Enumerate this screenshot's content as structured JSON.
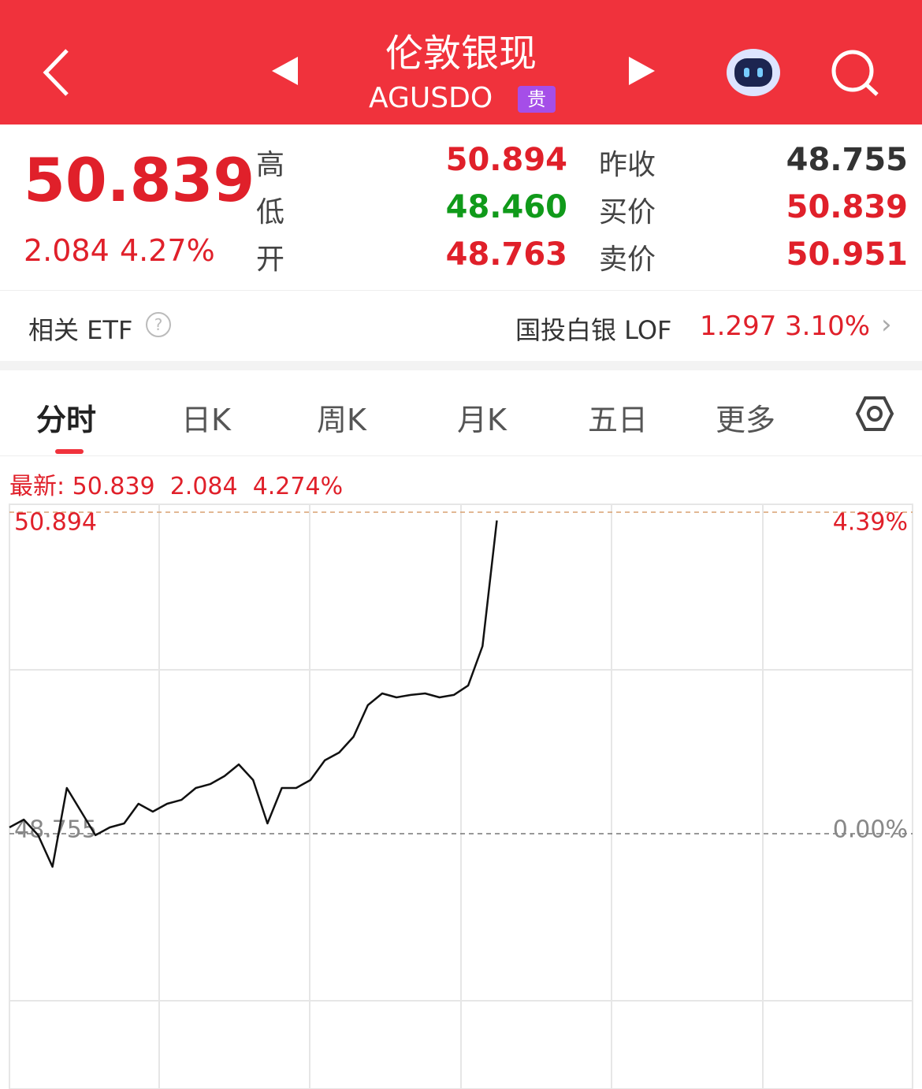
{
  "header": {
    "title": "伦敦银现",
    "code": "AGUSDO",
    "badge": "贵"
  },
  "quote": {
    "price": "50.839",
    "change": "2.084",
    "pct": "4.27%",
    "left": [
      {
        "label": "高",
        "value": "50.894"
      },
      {
        "label": "低",
        "value": "48.460"
      },
      {
        "label": "开",
        "value": "48.763"
      }
    ],
    "right": [
      {
        "label": "昨收",
        "value": "48.755"
      },
      {
        "label": "买价",
        "value": "50.839"
      },
      {
        "label": "卖价",
        "value": "50.951"
      }
    ]
  },
  "etf": {
    "label": "相关 ETF",
    "name": "国投白银 LOF",
    "price": "1.297",
    "pct": "3.10%"
  },
  "tabs": [
    "分时",
    "日K",
    "周K",
    "月K",
    "五日",
    "更多"
  ],
  "chart": {
    "type": "line",
    "latest_label": "最新:",
    "latest": "50.839",
    "change": "2.084",
    "pct": "4.274%",
    "high": 50.894,
    "high_pct": "4.39%",
    "base": 48.755,
    "base_pct": "0.00%",
    "values": [
      48.797,
      48.849,
      48.745,
      48.535,
      49.059,
      48.902,
      48.745,
      48.797,
      48.823,
      48.954,
      48.902,
      48.954,
      48.98,
      49.059,
      49.085,
      49.138,
      49.216,
      49.112,
      48.823,
      49.059,
      49.059,
      49.112,
      49.243,
      49.295,
      49.4,
      49.61,
      49.688,
      49.662,
      49.678,
      49.688,
      49.662,
      49.678,
      49.741,
      50.003,
      50.839,
      null,
      null,
      null,
      null,
      null,
      null,
      null,
      null,
      null,
      null,
      null,
      null,
      null,
      null,
      null,
      null,
      null,
      null,
      null,
      null,
      null,
      null,
      null,
      null,
      null,
      null,
      null,
      null,
      null
    ]
  }
}
